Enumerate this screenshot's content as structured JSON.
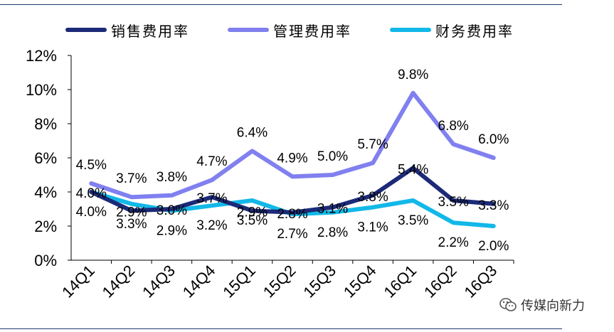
{
  "legend": {
    "items": [
      {
        "name": "销售费用率",
        "color": "#1c2a78"
      },
      {
        "name": "管理费用率",
        "color": "#8080f0"
      },
      {
        "name": "财务费用率",
        "color": "#12b8e8"
      }
    ]
  },
  "watermark": {
    "text": "传媒向新力",
    "icon": "wechat-icon"
  },
  "chart_data": {
    "type": "line",
    "title": "",
    "xlabel": "",
    "ylabel": "",
    "categories": [
      "14Q1",
      "14Q2",
      "14Q3",
      "14Q4",
      "15Q1",
      "15Q2",
      "15Q3",
      "15Q4",
      "16Q1",
      "16Q2",
      "16Q3"
    ],
    "y_ticks": [
      "0%",
      "2%",
      "4%",
      "6%",
      "8%",
      "10%",
      "12%"
    ],
    "ylim": [
      0,
      12
    ],
    "grid": false,
    "legend_position": "top",
    "series": [
      {
        "name": "销售费用率",
        "color": "#1c2a78",
        "values": [
          4.0,
          2.9,
          3.0,
          3.7,
          2.9,
          2.8,
          3.1,
          3.8,
          5.4,
          3.5,
          3.3
        ],
        "labels": [
          "4.0%",
          "2.9%",
          "3.0%",
          "3.7%",
          "2.9%",
          "2.8%",
          "3.1%",
          "3.8%",
          "5.4%",
          "3.5%",
          "3.3%"
        ]
      },
      {
        "name": "管理费用率",
        "color": "#8080f0",
        "values": [
          4.5,
          3.7,
          3.8,
          4.7,
          6.4,
          4.9,
          5.0,
          5.7,
          9.8,
          6.8,
          6.0
        ],
        "labels": [
          "4.5%",
          "3.7%",
          "3.8%",
          "4.7%",
          "6.4%",
          "4.9%",
          "5.0%",
          "5.7%",
          "9.8%",
          "6.8%",
          "6.0%"
        ]
      },
      {
        "name": "财务费用率",
        "color": "#12b8e8",
        "values": [
          4.0,
          3.3,
          2.9,
          3.2,
          3.5,
          2.7,
          2.8,
          3.1,
          3.5,
          2.2,
          2.0
        ],
        "labels": [
          "4.0%",
          "3.3%",
          "2.9%",
          "3.2%",
          "3.5%",
          "2.7%",
          "2.8%",
          "3.1%",
          "3.5%",
          "2.2%",
          "2.0%"
        ]
      }
    ]
  }
}
